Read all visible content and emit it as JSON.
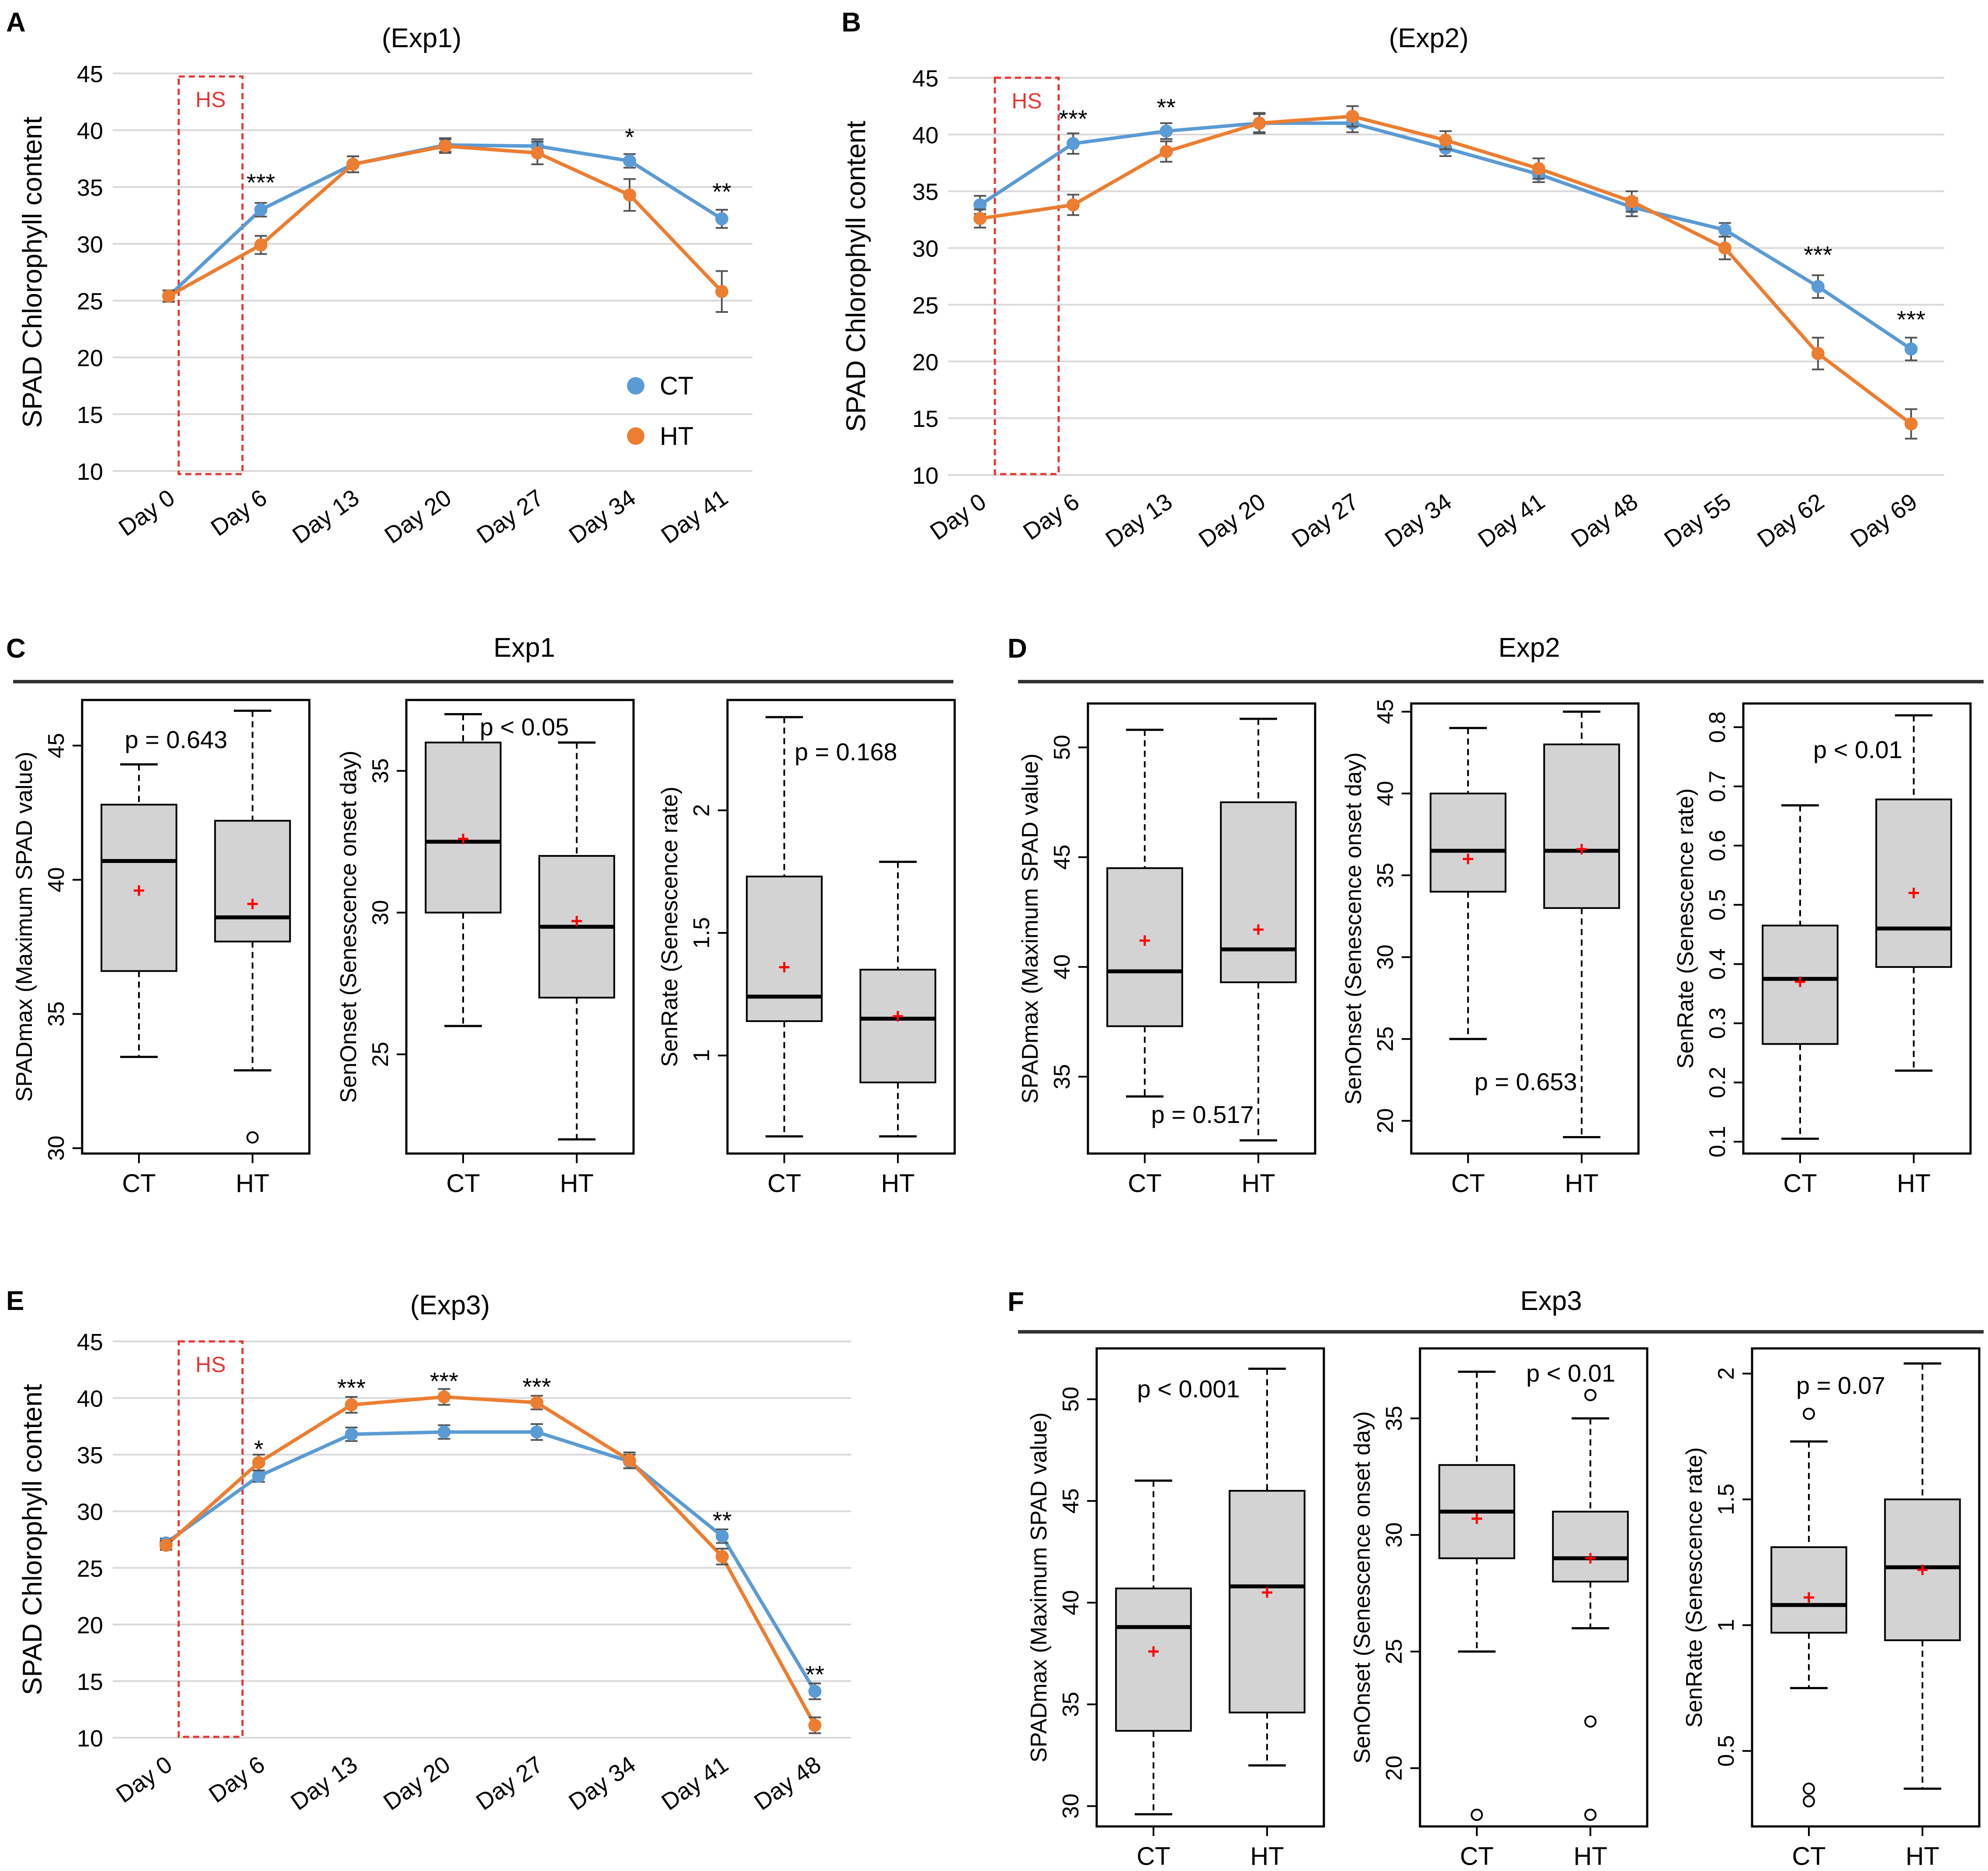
{
  "colors": {
    "ct": "#5B9BD5",
    "ht": "#ED7D31",
    "hs_box": "#E53935",
    "box_fill": "#D3D3D3",
    "mean_marker": "#FF0000",
    "grid": "#D9D9D9",
    "axis": "#000000"
  },
  "chart_data": [
    {
      "panel": "A",
      "type": "line",
      "title": "(Exp1)",
      "ylabel": "SPAD Chlorophyll content",
      "ylim": [
        10,
        45
      ],
      "yticks": [
        10,
        15,
        20,
        25,
        30,
        35,
        40,
        45
      ],
      "grid": true,
      "categories": [
        "Day 0",
        "Day 6",
        "Day 13",
        "Day 20",
        "Day 27",
        "Day 34",
        "Day 41"
      ],
      "series": [
        {
          "name": "CT",
          "values": [
            25.4,
            33.0,
            37.0,
            38.7,
            38.6,
            37.3,
            32.2
          ],
          "errors": [
            0.5,
            0.6,
            0.7,
            0.6,
            0.6,
            0.6,
            0.8
          ]
        },
        {
          "name": "HT",
          "values": [
            25.4,
            29.9,
            37.0,
            38.6,
            38.0,
            34.3,
            25.8
          ],
          "errors": [
            0.5,
            0.8,
            0.7,
            0.6,
            1.0,
            1.4,
            1.8
          ]
        }
      ],
      "significance": [
        {
          "category": "Day 6",
          "label": "***",
          "y": 35.5
        },
        {
          "category": "Day 34",
          "label": "*",
          "y": 39.5
        },
        {
          "category": "Day 41",
          "label": "**",
          "y": 34.7
        }
      ],
      "hs_label": "HS",
      "legend": [
        "CT",
        "HT"
      ],
      "legend_position": "bottom-right"
    },
    {
      "panel": "B",
      "type": "line",
      "title": "(Exp2)",
      "ylabel": "SPAD Chlorophyll content",
      "ylim": [
        10,
        45
      ],
      "yticks": [
        10,
        15,
        20,
        25,
        30,
        35,
        40,
        45
      ],
      "grid": true,
      "categories": [
        "Day 0",
        "Day 6",
        "Day 13",
        "Day 20",
        "Day 27",
        "Day 34",
        "Day 41",
        "Day 48",
        "Day 55",
        "Day 62",
        "Day 69"
      ],
      "series": [
        {
          "name": "CT",
          "values": [
            33.8,
            39.2,
            40.3,
            41.0,
            41.0,
            38.8,
            36.5,
            33.6,
            31.6,
            26.6,
            21.1
          ],
          "errors": [
            0.8,
            0.9,
            0.7,
            0.8,
            0.8,
            0.7,
            0.7,
            0.8,
            0.6,
            1.0,
            1.0
          ]
        },
        {
          "name": "HT",
          "values": [
            32.6,
            33.8,
            38.5,
            41.0,
            41.6,
            39.5,
            37.0,
            34.1,
            30.0,
            20.7,
            14.5
          ],
          "errors": [
            0.8,
            0.9,
            0.9,
            0.9,
            0.9,
            0.8,
            0.9,
            0.9,
            1.0,
            1.4,
            1.3
          ]
        }
      ],
      "significance": [
        {
          "category": "Day 6",
          "label": "***",
          "y": 41.5
        },
        {
          "category": "Day 13",
          "label": "**",
          "y": 42.5
        },
        {
          "category": "Day 62",
          "label": "***",
          "y": 29.5
        },
        {
          "category": "Day 69",
          "label": "***",
          "y": 23.8
        }
      ],
      "hs_label": "HS"
    },
    {
      "panel": "C",
      "type": "box",
      "title": "Exp1",
      "subplots": [
        {
          "ylabel": "SPADmax (Maximum SPAD value)",
          "ylim": [
            29.8,
            46.7
          ],
          "yticks": [
            30,
            35,
            40,
            45
          ],
          "p_text": "p = 0.643",
          "boxes": [
            {
              "group": "CT",
              "whisker_low": 33.4,
              "q1": 36.6,
              "median": 40.7,
              "q3": 42.8,
              "whisker_high": 44.3,
              "mean": 39.6,
              "outliers": []
            },
            {
              "group": "HT",
              "whisker_low": 32.9,
              "q1": 37.7,
              "median": 38.6,
              "q3": 42.2,
              "whisker_high": 46.3,
              "mean": 39.1,
              "outliers": [
                30.4
              ]
            }
          ]
        },
        {
          "ylabel": "SenOnset (Senescence onset day)",
          "ylim": [
            21.5,
            37.5
          ],
          "yticks": [
            25,
            30,
            35
          ],
          "p_text": "p < 0.05",
          "boxes": [
            {
              "group": "CT",
              "whisker_low": 26.0,
              "q1": 30.0,
              "median": 32.5,
              "q3": 36.0,
              "whisker_high": 37.0,
              "mean": 32.6,
              "outliers": []
            },
            {
              "group": "HT",
              "whisker_low": 22.0,
              "q1": 27.0,
              "median": 29.5,
              "q3": 32.0,
              "whisker_high": 36.0,
              "mean": 29.7,
              "outliers": []
            }
          ]
        },
        {
          "ylabel": "SenRate (Senescence rate)",
          "ylim": [
            0.6,
            2.45
          ],
          "yticks": [
            1.0,
            1.5,
            2.0
          ],
          "p_text": "p = 0.168",
          "boxes": [
            {
              "group": "CT",
              "whisker_low": 0.67,
              "q1": 1.14,
              "median": 1.24,
              "q3": 1.73,
              "whisker_high": 2.38,
              "mean": 1.36,
              "outliers": []
            },
            {
              "group": "HT",
              "whisker_low": 0.67,
              "q1": 0.89,
              "median": 1.15,
              "q3": 1.35,
              "whisker_high": 1.79,
              "mean": 1.16,
              "outliers": []
            }
          ]
        }
      ]
    },
    {
      "panel": "D",
      "type": "box",
      "title": "Exp2",
      "subplots": [
        {
          "ylabel": "SPADmax (Maximum SPAD value)",
          "ylim": [
            31.5,
            52
          ],
          "yticks": [
            35,
            40,
            45,
            50
          ],
          "p_text": "p = 0.517",
          "boxes": [
            {
              "group": "CT",
              "whisker_low": 34.1,
              "q1": 37.3,
              "median": 39.8,
              "q3": 44.5,
              "whisker_high": 50.8,
              "mean": 41.2,
              "outliers": []
            },
            {
              "group": "HT",
              "whisker_low": 32.1,
              "q1": 39.3,
              "median": 40.8,
              "q3": 47.5,
              "whisker_high": 51.3,
              "mean": 41.7,
              "outliers": []
            }
          ]
        },
        {
          "ylabel": "SenOnset (Senescence onset day)",
          "ylim": [
            18,
            45.5
          ],
          "yticks": [
            20,
            25,
            30,
            35,
            40,
            45
          ],
          "p_text": "p = 0.653",
          "boxes": [
            {
              "group": "CT",
              "whisker_low": 25.0,
              "q1": 34.0,
              "median": 36.5,
              "q3": 40.0,
              "whisker_high": 44.0,
              "mean": 36.0,
              "outliers": []
            },
            {
              "group": "HT",
              "whisker_low": 19.0,
              "q1": 33.0,
              "median": 36.5,
              "q3": 43.0,
              "whisker_high": 45.0,
              "mean": 36.6,
              "outliers": []
            }
          ]
        },
        {
          "ylabel": "SenRate (Senescence rate)",
          "ylim": [
            0.08,
            0.84
          ],
          "yticks": [
            0.1,
            0.2,
            0.3,
            0.4,
            0.5,
            0.6,
            0.7,
            0.8
          ],
          "p_text": "p < 0.01",
          "boxes": [
            {
              "group": "CT",
              "whisker_low": 0.105,
              "q1": 0.265,
              "median": 0.375,
              "q3": 0.465,
              "whisker_high": 0.668,
              "mean": 0.37,
              "outliers": []
            },
            {
              "group": "HT",
              "whisker_low": 0.22,
              "q1": 0.395,
              "median": 0.46,
              "q3": 0.678,
              "whisker_high": 0.82,
              "mean": 0.52,
              "outliers": []
            }
          ]
        }
      ]
    },
    {
      "panel": "E",
      "type": "line",
      "title": "(Exp3)",
      "ylabel": "SPAD Chlorophyll content",
      "ylim": [
        10,
        45
      ],
      "yticks": [
        10,
        15,
        20,
        25,
        30,
        35,
        40,
        45
      ],
      "grid": true,
      "categories": [
        "Day 0",
        "Day 6",
        "Day 13",
        "Day 20",
        "Day 27",
        "Day 34",
        "Day 41",
        "Day 48"
      ],
      "series": [
        {
          "name": "CT",
          "values": [
            27.2,
            33.1,
            36.8,
            37.0,
            37.0,
            34.4,
            27.8,
            14.1
          ],
          "errors": [
            0.4,
            0.5,
            0.6,
            0.6,
            0.7,
            0.6,
            0.6,
            0.7
          ]
        },
        {
          "name": "HT",
          "values": [
            27.0,
            34.3,
            39.4,
            40.1,
            39.6,
            34.5,
            26.0,
            11.1
          ],
          "errors": [
            0.4,
            0.7,
            0.7,
            0.7,
            0.6,
            0.7,
            0.7,
            0.7
          ]
        }
      ],
      "significance": [
        {
          "category": "Day 6",
          "label": "*",
          "y": 35.6
        },
        {
          "category": "Day 13",
          "label": "***",
          "y": 41.0
        },
        {
          "category": "Day 20",
          "label": "***",
          "y": 41.6
        },
        {
          "category": "Day 27",
          "label": "***",
          "y": 41.1
        },
        {
          "category": "Day 41",
          "label": "**",
          "y": 29.3
        },
        {
          "category": "Day 48",
          "label": "**",
          "y": 15.7
        }
      ],
      "hs_label": "HS"
    },
    {
      "panel": "F",
      "type": "box",
      "title": "Exp3",
      "subplots": [
        {
          "ylabel": "SPADmax (Maximum SPAD value)",
          "ylim": [
            29,
            52.5
          ],
          "yticks": [
            30,
            35,
            40,
            45,
            50
          ],
          "p_text": "p < 0.001",
          "boxes": [
            {
              "group": "CT",
              "whisker_low": 29.6,
              "q1": 33.7,
              "median": 38.8,
              "q3": 40.7,
              "whisker_high": 46.0,
              "mean": 37.6,
              "outliers": []
            },
            {
              "group": "HT",
              "whisker_low": 32.0,
              "q1": 34.6,
              "median": 40.8,
              "q3": 45.5,
              "whisker_high": 51.5,
              "mean": 40.5,
              "outliers": []
            }
          ]
        },
        {
          "ylabel": "SenOnset (Senescence onset day)",
          "ylim": [
            17.5,
            38
          ],
          "yticks": [
            20,
            25,
            30,
            35
          ],
          "p_text": "p < 0.01",
          "boxes": [
            {
              "group": "CT",
              "whisker_low": 25.0,
              "q1": 29.0,
              "median": 31.0,
              "q3": 33.0,
              "whisker_high": 37.0,
              "mean": 30.7,
              "outliers": [
                18.0
              ]
            },
            {
              "group": "HT",
              "whisker_low": 26.0,
              "q1": 28.0,
              "median": 29.0,
              "q3": 31.0,
              "whisker_high": 35.0,
              "mean": 29.0,
              "outliers": [
                18.0,
                22.0,
                36.0
              ]
            }
          ]
        },
        {
          "ylabel": "SenRate (Senescence rate)",
          "ylim": [
            0.2,
            2.1
          ],
          "yticks": [
            0.5,
            1.0,
            1.5,
            2.0
          ],
          "p_text": "p = 0.07",
          "boxes": [
            {
              "group": "CT",
              "whisker_low": 0.75,
              "q1": 0.97,
              "median": 1.08,
              "q3": 1.31,
              "whisker_high": 1.73,
              "mean": 1.11,
              "outliers": [
                0.3,
                0.35,
                1.84
              ]
            },
            {
              "group": "HT",
              "whisker_low": 0.35,
              "q1": 0.94,
              "median": 1.23,
              "q3": 1.5,
              "whisker_high": 2.04,
              "mean": 1.22,
              "outliers": []
            }
          ]
        }
      ]
    }
  ]
}
